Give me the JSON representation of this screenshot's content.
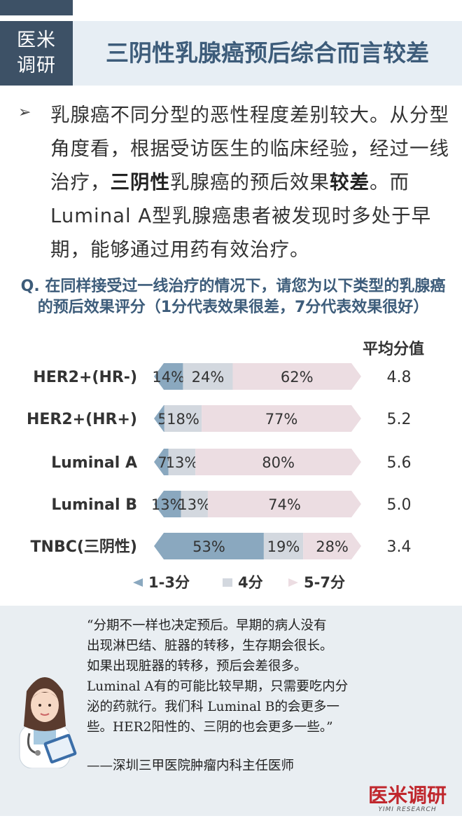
{
  "header": {
    "logo_line1": "医米",
    "logo_line2": "调研",
    "title": "三阴性乳腺癌预后综合而言较差"
  },
  "bullet": {
    "part1": "乳腺癌不同分型的恶性程度差别较大。从分型角度看，根据受访医生的临床经验，经过一线治疗，",
    "bold1": "三阴性",
    "part2": "乳腺癌的预后效果",
    "bold2": "较差",
    "part3": "。而Luminal A型乳腺癌患者被发现时多处于早期，能够通过用药有效治疗。"
  },
  "question": "Q. 在同样接受过一线治疗的情况下，请您为以下类型的乳腺癌的预后效果评分（1分代表效果很差，7分代表效果很好）",
  "avg_header": "平均分值",
  "chart_data": {
    "type": "bar",
    "orientation": "horizontal",
    "stacked": true,
    "categories": [
      "HER2+(HR-)",
      "HER2+(HR+)",
      "Luminal A",
      "Luminal B",
      "TNBC(三阴性)"
    ],
    "series": [
      {
        "name": "1-3分",
        "values": [
          14,
          5,
          7,
          13,
          53
        ],
        "labels": [
          "14%",
          "5%",
          "7%",
          "13%",
          "53%"
        ],
        "color": "#8aa8bf"
      },
      {
        "name": "4分",
        "values": [
          24,
          18,
          13,
          13,
          19
        ],
        "labels": [
          "24%",
          "18%",
          "13%",
          "13%",
          "19%"
        ],
        "color": "#d3d8df"
      },
      {
        "name": "5-7分",
        "values": [
          62,
          77,
          80,
          74,
          28
        ],
        "labels": [
          "62%",
          "77%",
          "80%",
          "74%",
          "28%"
        ],
        "color": "#ecdde2"
      }
    ],
    "averages": [
      "4.8",
      "5.2",
      "5.6",
      "5.0",
      "3.4"
    ],
    "xlim": [
      0,
      100
    ],
    "legend": "bottom"
  },
  "legend": {
    "items": [
      {
        "label": "1-3分",
        "color": "#8aa8bf"
      },
      {
        "label": "4分",
        "color": "#d3d8df"
      },
      {
        "label": "5-7分",
        "color": "#ecdde2"
      }
    ]
  },
  "quote": {
    "lines": [
      "“分期不一样也决定预后。早期的病人没有",
      "出现淋巴结、脏器的转移，生存期会很长。",
      "如果出现脏器的转移，预后会差很多。",
      "Luminal A有的可能比较早期，只需要吃内分",
      "泌的药就行。我们科 Luminal B的会更多一",
      "些。HER2阳性的、三阴的也会更多一些。”"
    ],
    "author": "——深圳三甲医院肿瘤内科主任医师"
  },
  "brand": {
    "name": "医米调研",
    "sub": "YIMI RESEARCH"
  }
}
